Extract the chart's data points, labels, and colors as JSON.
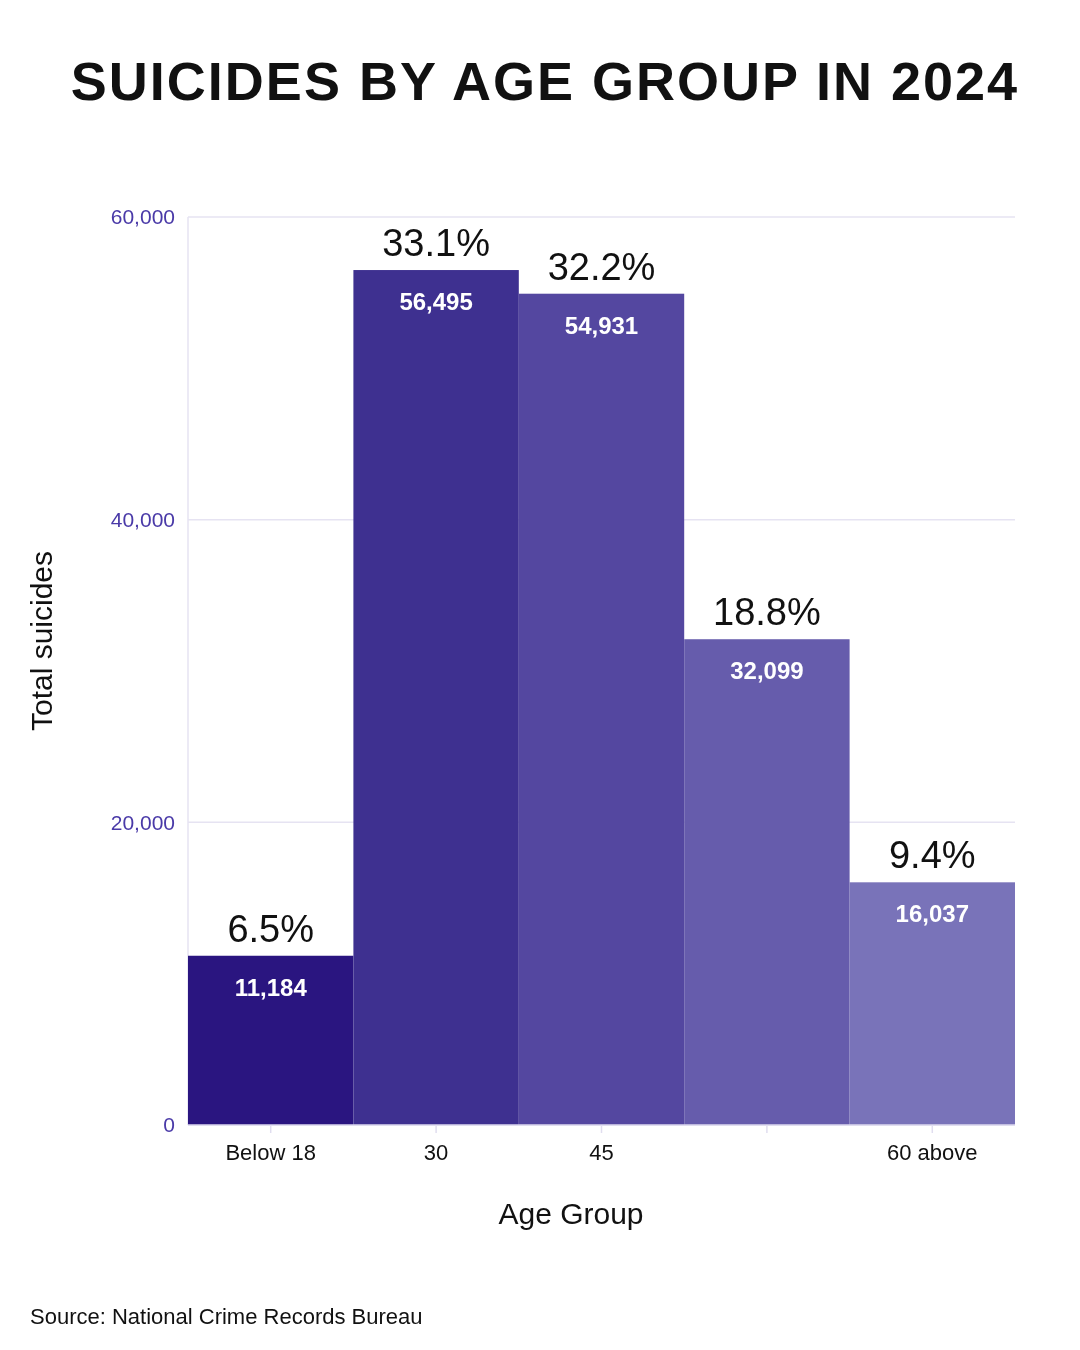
{
  "chart_data": {
    "type": "bar",
    "title": "SUICIDES BY AGE GROUP IN 2024",
    "xlabel": "Age Group",
    "ylabel": "Total suicides",
    "categories": [
      "Below 18",
      "30",
      "45",
      null,
      "60 above"
    ],
    "values": [
      11184,
      56495,
      54931,
      32099,
      16037
    ],
    "value_labels": [
      "11,184",
      "56,495",
      "54,931",
      "32,099",
      "16,037"
    ],
    "colors": [
      "#2a1580",
      "#3e3090",
      "#5447a0",
      "#665cac",
      "#7973b9"
    ],
    "ylim": [
      0,
      60000
    ],
    "yticks": [
      {
        "value": 0,
        "label": "0"
      },
      {
        "value": 20000,
        "label": "20,000"
      },
      {
        "value": 40000,
        "label": "40,000"
      },
      {
        "value": 60000,
        "label": "60,000"
      }
    ],
    "grid": "y",
    "annotations": [
      {
        "text": "6.5%",
        "y": 11184
      },
      {
        "text": "33.1%",
        "y": 56495
      },
      {
        "text": "32.2%",
        "y": 54931
      },
      {
        "text": "18.8%",
        "y": 32099
      },
      {
        "text": "9.4%",
        "y": 16037
      },
      "Source: National Crime Records Bureau"
    ]
  }
}
